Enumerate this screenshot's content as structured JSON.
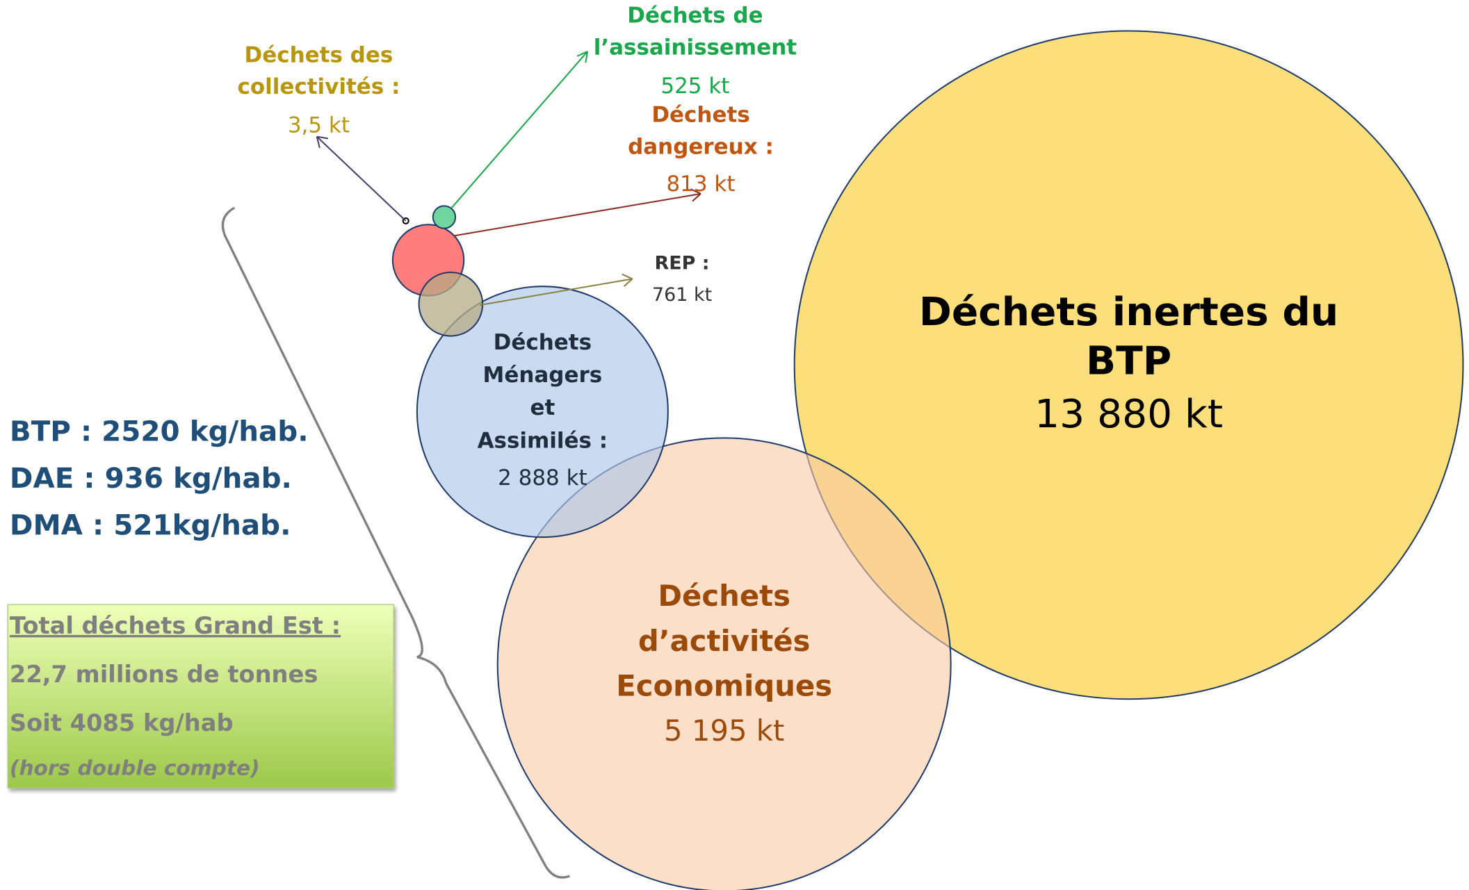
{
  "nodes": {
    "btp": {
      "title_lines": [
        "Déchets inertes du",
        "BTP"
      ],
      "value": "13 880 kt"
    },
    "dae": {
      "title_lines": [
        "Déchets",
        "d’activités",
        "Economiques"
      ],
      "value": "5 195 kt"
    },
    "dma": {
      "title_lines": [
        "Déchets",
        "Ménagers",
        "et",
        "Assimilés :"
      ],
      "value": "2 888 kt"
    },
    "rep": {
      "title_lines": [
        "REP :"
      ],
      "value": "761 kt"
    },
    "dangereux": {
      "title_lines": [
        "Déchets",
        "dangereux :"
      ],
      "value": "813 kt"
    },
    "assainissement": {
      "title_lines": [
        "Déchets de",
        "l’assainissement"
      ],
      "value": "525 kt"
    },
    "collectivites": {
      "title_lines": [
        "Déchets des",
        "collectivités :"
      ],
      "value": "3,5 kt"
    }
  },
  "stats": [
    "BTP : 2520 kg/hab.",
    "DAE : 936 kg/hab.",
    "DMA : 521kg/hab."
  ],
  "total": {
    "heading": "Total déchets Grand Est :",
    "lines": [
      "22,7 millions de tonnes",
      "Soit 4085 kg/hab"
    ],
    "note": "(hors double compte)"
  }
}
